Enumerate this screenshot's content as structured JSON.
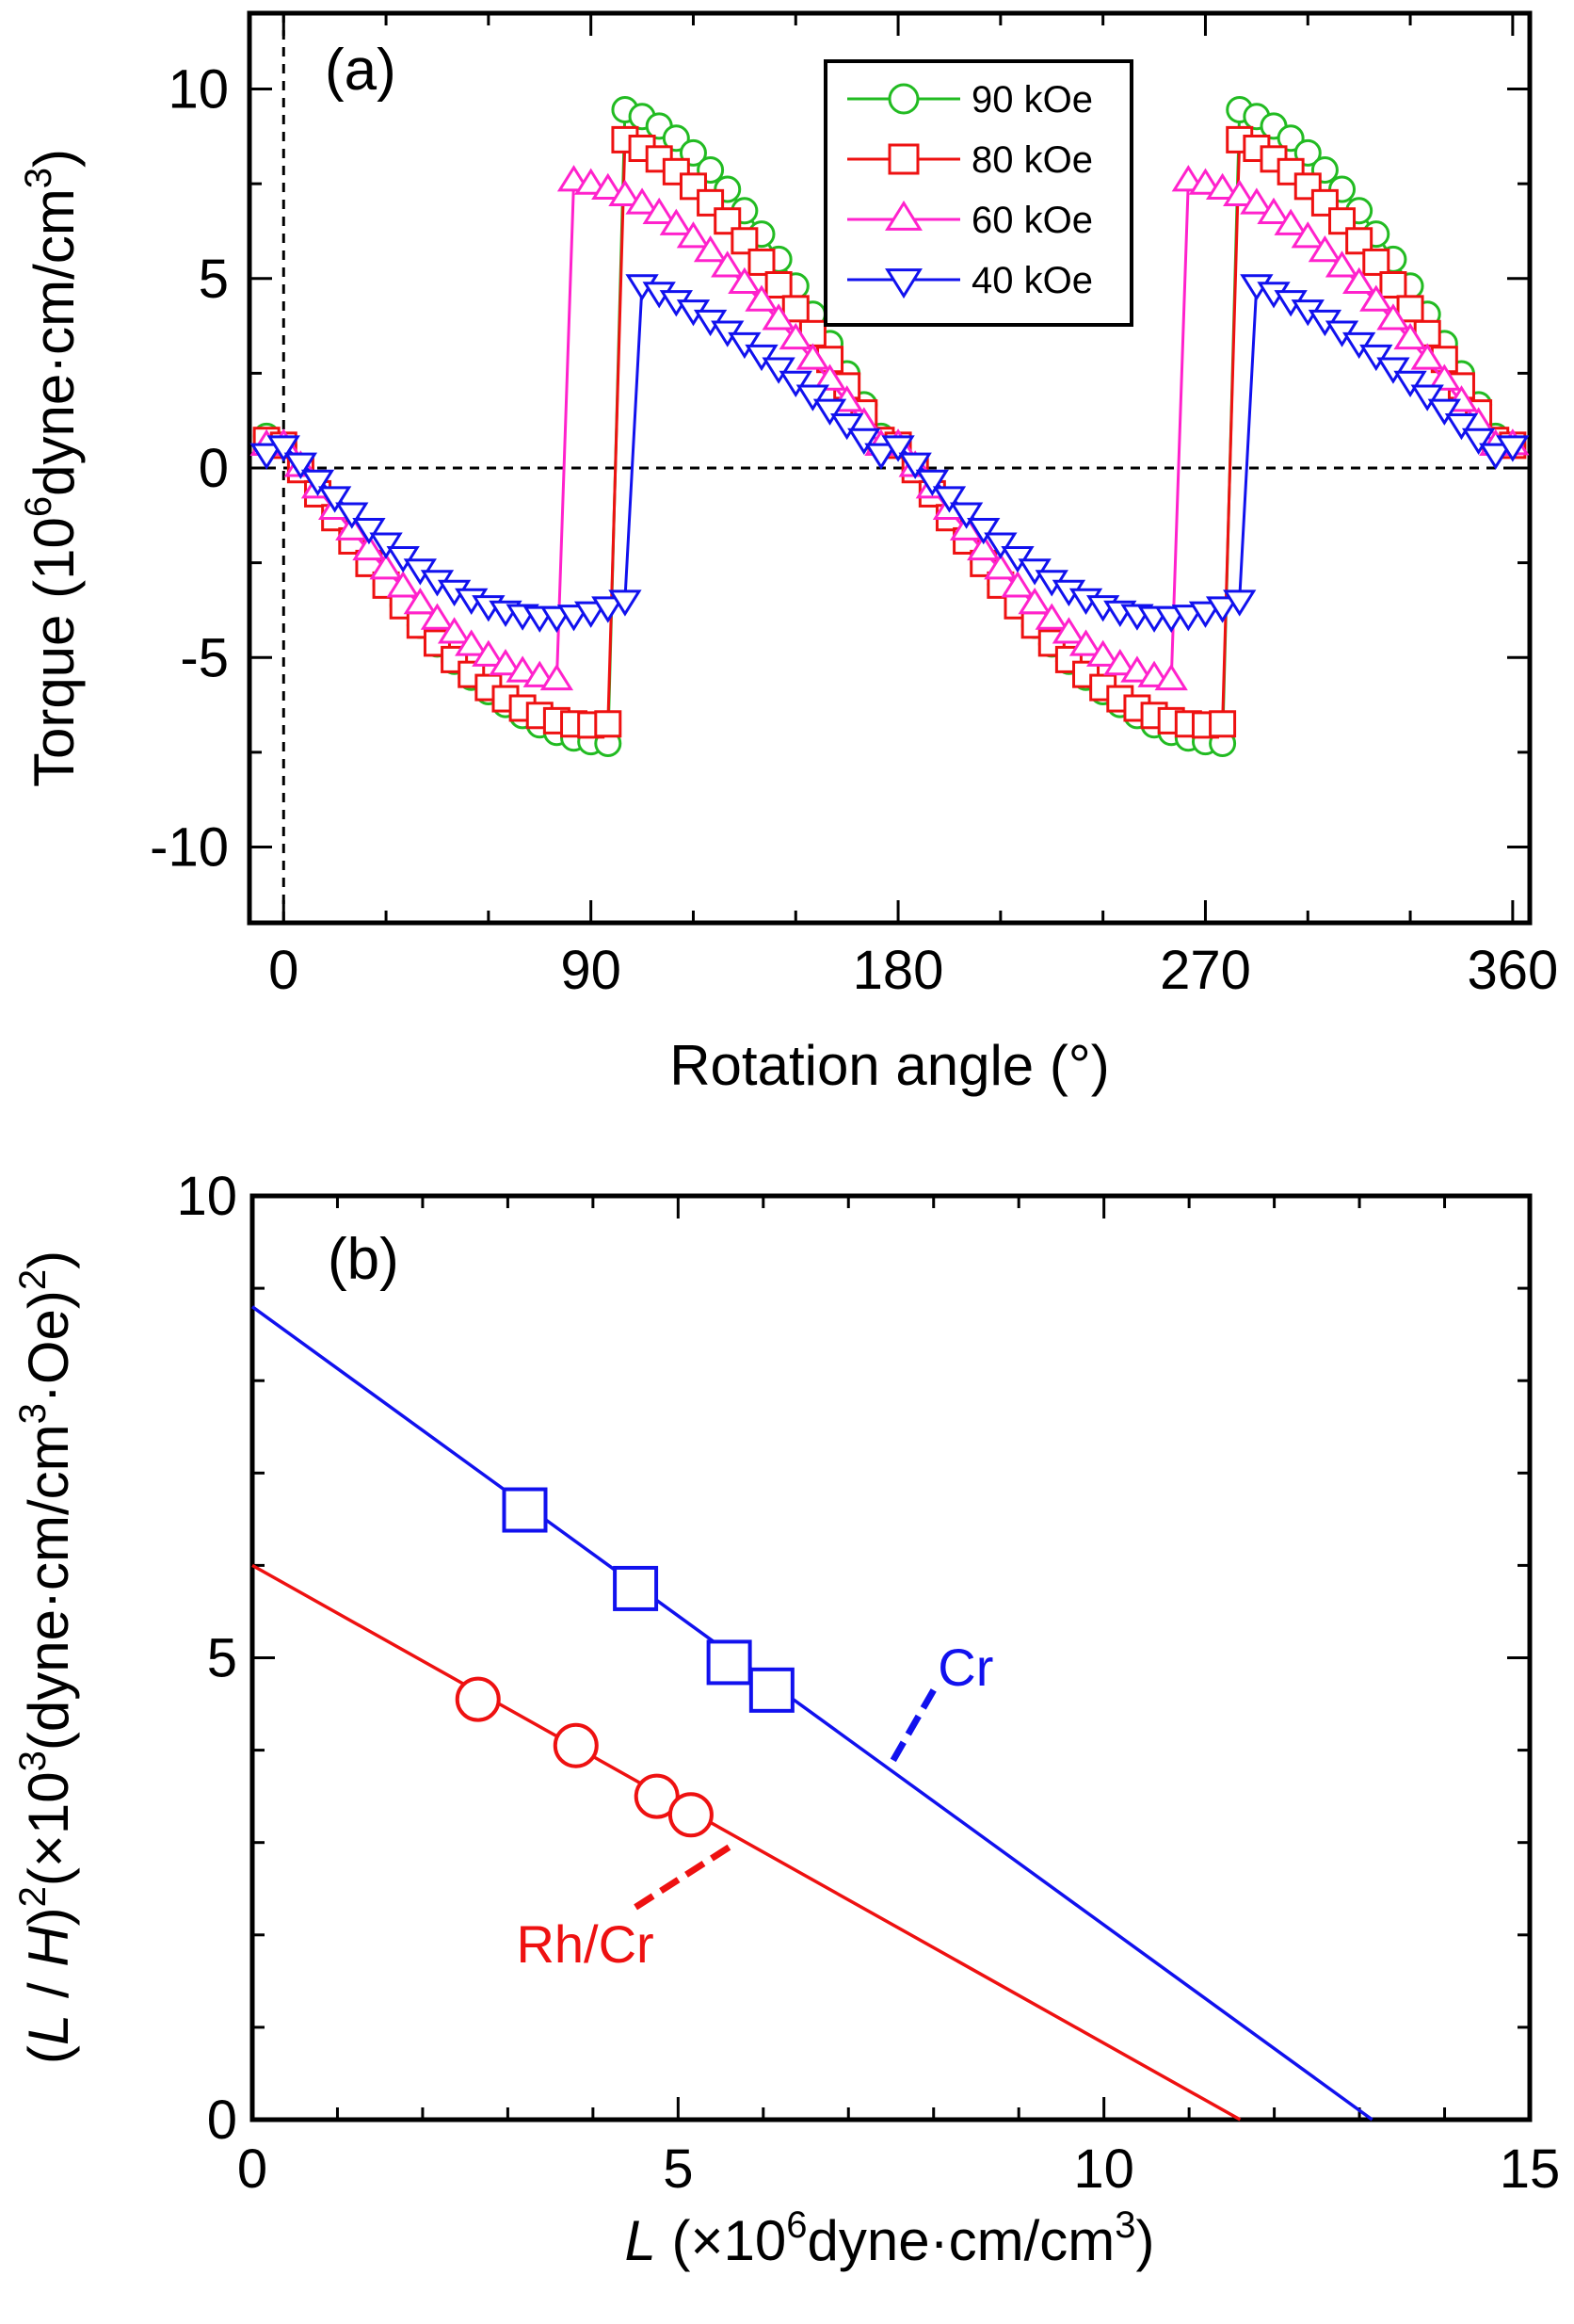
{
  "chart_data": [
    {
      "type": "scatter",
      "panel_label": "(a)",
      "xlabel": "Rotation angle (°)",
      "ylabel": "Torque (10⁶dyne·cm/cm³)",
      "xlim": [
        -10,
        365
      ],
      "ylim": [
        -12,
        12
      ],
      "xticks": [
        0,
        90,
        180,
        270,
        360
      ],
      "yticks": [
        -10,
        -5,
        0,
        5,
        10
      ],
      "legend_position": "top-right",
      "reference_lines": {
        "horizontal_y": 0,
        "vertical_x": 0,
        "style": "dashed"
      },
      "series": [
        {
          "name": "90 kOe",
          "color": "#22bb22",
          "marker": "circle",
          "amplitude": 9.6,
          "switch_forward": 95,
          "switch_backward": 100
        },
        {
          "name": "80 kOe",
          "color": "#ee1111",
          "marker": "square",
          "amplitude": 9.0,
          "switch_forward": 88,
          "switch_backward": 97
        },
        {
          "name": "60 kOe",
          "color": "#ff22cc",
          "marker": "triangle-up",
          "amplitude": 7.6,
          "switch_forward": 83,
          "switch_backward": 100
        },
        {
          "name": "40 kOe",
          "color": "#1111ee",
          "marker": "triangle-down",
          "amplitude": 5.5,
          "switch_forward": 76,
          "switch_backward": 103
        }
      ]
    },
    {
      "type": "scatter",
      "panel_label": "(b)",
      "xlabel": "L (×10⁶dyne·cm/cm³)",
      "ylabel": "(L / H)²(×10³(dyne·cm/cm³·Oe)²)",
      "xlim": [
        0,
        15
      ],
      "ylim": [
        0,
        10
      ],
      "xticks": [
        0,
        5,
        10,
        15
      ],
      "yticks": [
        0,
        5,
        10
      ],
      "series": [
        {
          "name": "Cr",
          "color": "#1111ee",
          "marker": "square",
          "points": [
            [
              3.2,
              6.6
            ],
            [
              4.5,
              5.75
            ],
            [
              5.6,
              4.95
            ],
            [
              6.1,
              4.65
            ]
          ],
          "fit_line": [
            [
              0,
              8.8
            ],
            [
              13.15,
              0
            ]
          ]
        },
        {
          "name": "Rh/Cr",
          "color": "#ee1111",
          "marker": "circle",
          "points": [
            [
              2.65,
              4.55
            ],
            [
              3.8,
              4.05
            ],
            [
              4.75,
              3.5
            ],
            [
              5.15,
              3.3
            ]
          ],
          "fit_line": [
            [
              0,
              6.0
            ],
            [
              11.6,
              0
            ]
          ]
        }
      ],
      "annotations": [
        {
          "text": "Cr",
          "color": "#1111ee",
          "pointer_from": [
            8.0,
            4.65
          ],
          "pointer_to": [
            7.5,
            3.85
          ]
        },
        {
          "text": "Rh/Cr",
          "color": "#ee1111",
          "pointer_from": [
            4.5,
            2.3
          ],
          "pointer_to": [
            5.6,
            2.95
          ]
        }
      ]
    }
  ]
}
